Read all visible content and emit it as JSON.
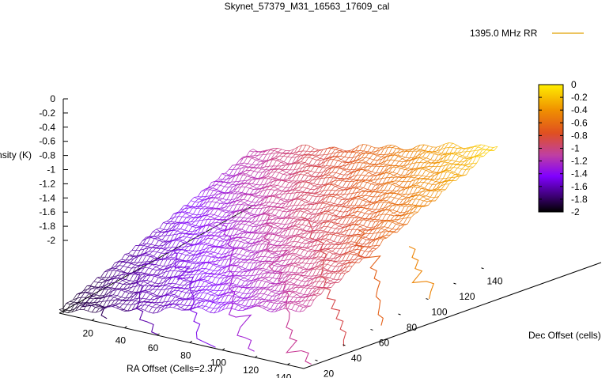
{
  "chart_data": {
    "type": "surface",
    "title": "Skynet_57379_M31_16563_17609_cal",
    "xlabel": "RA Offset (Cells=2.37')",
    "ylabel": "Dec Offset (cells)",
    "zlabel": "Intensity (K)",
    "legend": {
      "label": "1395.0 MHz RR",
      "position": "top-right",
      "color": "#e0a000"
    },
    "x_ticks": [
      "20",
      "40",
      "60",
      "80",
      "100",
      "120",
      "140"
    ],
    "y_ticks": [
      "20",
      "40",
      "60",
      "80",
      "100",
      "120",
      "140"
    ],
    "z_ticks": [
      "0",
      "-0.2",
      "-0.4",
      "-0.6",
      "-0.8",
      "-1",
      "-1.2",
      "-1.4",
      "-1.6",
      "-1.8",
      "-2"
    ],
    "colorbar_ticks": [
      "0",
      "-0.2",
      "-0.4",
      "-0.6",
      "-0.8",
      "-1",
      "-1.2",
      "-1.4",
      "-1.6",
      "-1.8",
      "-2"
    ],
    "xlim": [
      0,
      150
    ],
    "ylim": [
      10,
      150
    ],
    "zlim": [
      -2,
      0
    ],
    "palette": [
      "#000000",
      "#5a00a8",
      "#9a20ff",
      "#c8389a",
      "#e05020",
      "#ee8c00",
      "#ffe020"
    ],
    "surface_corners": {
      "x_min_y_min": -1.95,
      "x_min_y_max": -1.05,
      "x_max_y_min": -1.0,
      "x_max_y_max": -0.05
    },
    "contour_levels": [
      -1.8,
      -1.6,
      -1.4,
      -1.2,
      -1.0,
      -0.8,
      -0.6,
      -0.4
    ]
  }
}
